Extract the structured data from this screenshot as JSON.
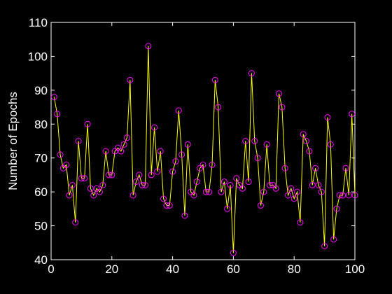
{
  "chart_data": {
    "type": "line",
    "title": "",
    "xlabel": "",
    "ylabel": "Number of Epochs",
    "xlim": [
      0,
      100
    ],
    "ylim": [
      40,
      110
    ],
    "xticks": [
      0,
      20,
      40,
      60,
      80,
      100
    ],
    "yticks": [
      40,
      50,
      60,
      70,
      80,
      90,
      100,
      110
    ],
    "grid": false,
    "background_color": "#000000",
    "axes_color": "#ffffff",
    "line_color": "#ffff00",
    "marker_color": "#ff00ff",
    "marker": "circle",
    "series": [
      {
        "x": [
          1,
          2,
          3,
          4,
          5,
          6,
          7,
          8,
          9,
          10,
          11,
          12,
          13,
          14,
          15,
          16,
          17,
          18,
          19,
          20,
          21,
          22,
          23,
          24,
          25,
          26,
          27,
          28,
          29,
          30,
          31,
          32,
          33,
          34,
          35,
          36,
          37,
          38,
          39,
          40,
          41,
          42,
          43,
          44,
          45,
          46,
          47,
          48,
          49,
          50,
          51,
          52,
          53,
          54,
          55,
          56,
          57,
          58,
          59,
          60,
          61,
          62,
          63,
          64,
          65,
          66,
          67,
          68,
          69,
          70,
          71,
          72,
          73,
          74,
          75,
          76,
          77,
          78,
          79,
          80,
          81,
          82,
          83,
          84,
          85,
          86,
          87,
          88,
          89,
          90,
          91,
          92,
          93,
          94,
          95,
          96,
          97,
          98,
          99,
          100
        ],
        "y": [
          88,
          83,
          71,
          67,
          68,
          59,
          62,
          51,
          75,
          64,
          64,
          80,
          61,
          59,
          61,
          60,
          62,
          72,
          65,
          65,
          72,
          73,
          72,
          74,
          76,
          93,
          59,
          63,
          65,
          62,
          62,
          103,
          65,
          79,
          66,
          72,
          58,
          56,
          56,
          66,
          69,
          84,
          71,
          53,
          74,
          60,
          59,
          63,
          67,
          68,
          60,
          60,
          68,
          93,
          85,
          60,
          63,
          55,
          62,
          42,
          64,
          62,
          61,
          75,
          63,
          95,
          75,
          70,
          56,
          60,
          74,
          62,
          62,
          61,
          89,
          85,
          67,
          59,
          61,
          58,
          60,
          51,
          77,
          75,
          72,
          62,
          67,
          62,
          60,
          44,
          82,
          74,
          46,
          55,
          59,
          59,
          67,
          59,
          83,
          59
        ]
      }
    ]
  }
}
